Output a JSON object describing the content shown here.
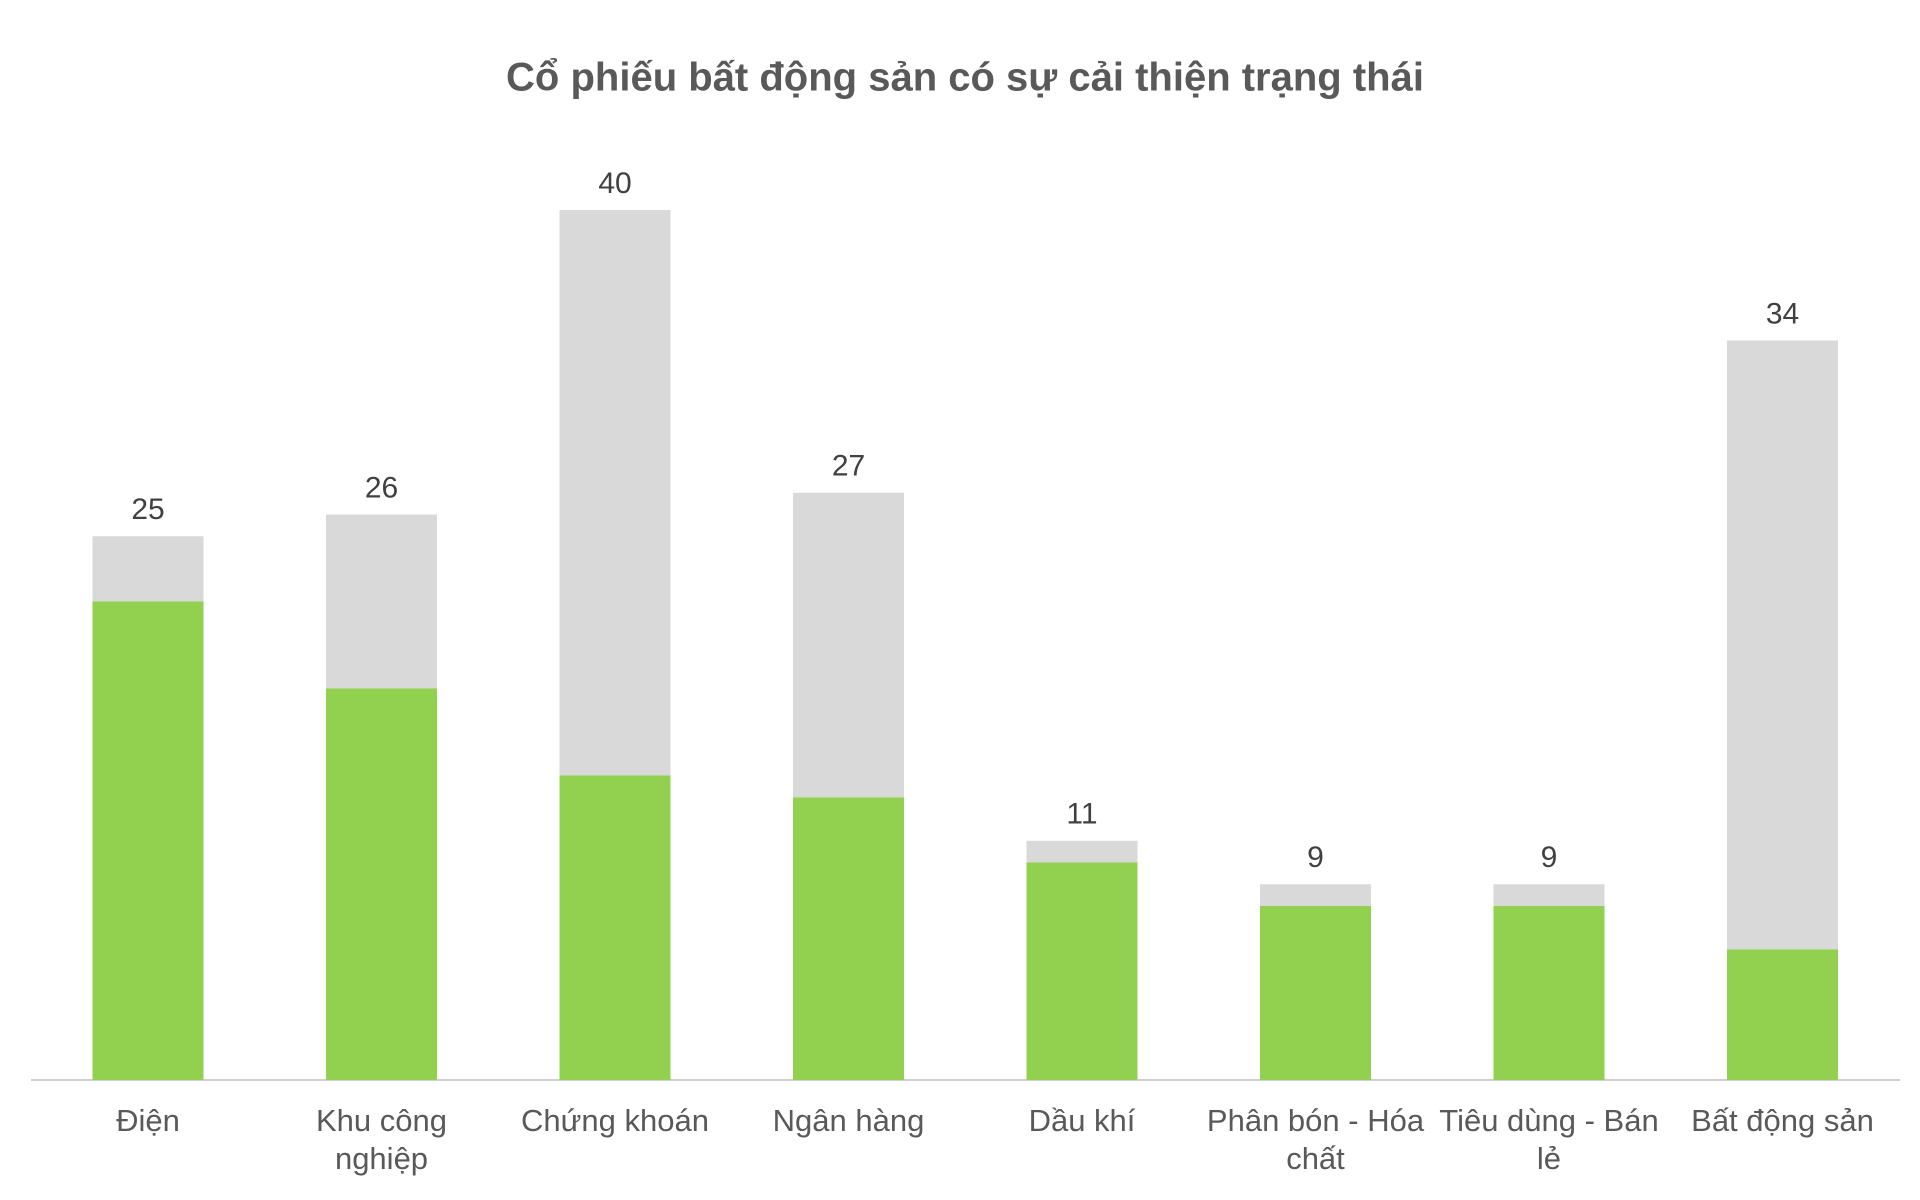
{
  "chart_data": {
    "type": "stacked_bar",
    "title": "Cổ phiếu bất động sản có sự cải thiện trạng thái",
    "categories": [
      "Điện",
      "Khu công nghiệp",
      "Chứng khoán",
      "Ngân hàng",
      "Dầu khí",
      "Phân bón - Hóa chất",
      "Tiêu dùng - Bán lẻ",
      "Bất động sản"
    ],
    "series": [
      {
        "color": "#92d050",
        "values": [
          22,
          18,
          14,
          13,
          10,
          8,
          8,
          6
        ]
      },
      {
        "color": "#d9d9d9",
        "values": [
          3,
          8,
          26,
          14,
          1,
          1,
          1,
          28
        ]
      }
    ],
    "totals": [
      25,
      26,
      40,
      27,
      11,
      9,
      9,
      34
    ],
    "ylim": [
      0,
      40
    ]
  }
}
